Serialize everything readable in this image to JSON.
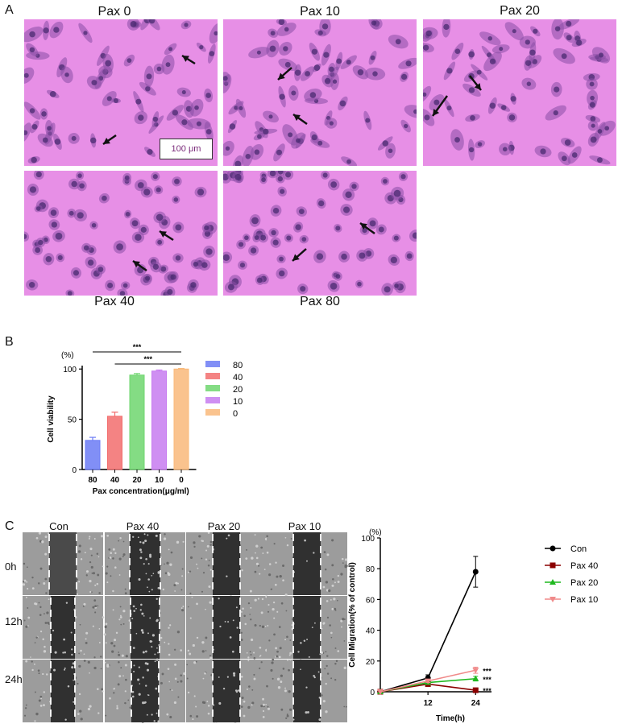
{
  "panel_a": {
    "letter": "A",
    "labels": [
      "Pax 0",
      "Pax 10",
      "Pax 20",
      "Pax 40",
      "Pax 80"
    ],
    "scale_bar": "100 μm",
    "colors": {
      "bg": "#e78fe6",
      "cell": "#8a4fa6",
      "nucleus": "#4a2a70",
      "arrow": "#111111"
    }
  },
  "panel_b": {
    "letter": "B",
    "unit": "(%)",
    "sig1": "***",
    "sig2": "***",
    "legend": [
      "80",
      "40",
      "20",
      "10",
      "0"
    ]
  },
  "panel_c": {
    "letter": "C",
    "columns": [
      "Con",
      "Pax 40",
      "Pax 20",
      "Pax 10"
    ],
    "rows": [
      "0h",
      "12h",
      "24h"
    ],
    "unit": "(%)",
    "legend": [
      "Con",
      "Pax 40",
      "Pax 20",
      "Pax 10"
    ],
    "stars": [
      "***",
      "***",
      "***"
    ]
  },
  "chart_data": [
    {
      "type": "bar",
      "categories": [
        "80",
        "40",
        "20",
        "10",
        "0"
      ],
      "values": [
        29,
        53,
        94,
        98,
        100
      ],
      "errors": [
        3,
        4,
        1.5,
        1,
        0.5
      ],
      "colors": [
        "#6b7bf5",
        "#f26d6d",
        "#6fd66f",
        "#c77bf0",
        "#f9b97a"
      ],
      "xlabel": "Pax concentration(μg/ml)",
      "ylabel": "Cell viability",
      "yticks": [
        "0",
        "50",
        "100"
      ],
      "ylim": [
        0,
        105
      ],
      "legend_position": "right"
    },
    {
      "type": "line",
      "x": [
        0,
        12,
        24
      ],
      "xticks": [
        "12",
        "24"
      ],
      "yticks": [
        "0",
        "20",
        "40",
        "60",
        "80",
        "100"
      ],
      "ylim": [
        0,
        100
      ],
      "xlabel": "Time(h)",
      "ylabel": "Cell Migration(% of control)",
      "series": [
        {
          "name": "Con",
          "values": [
            0,
            9,
            78
          ],
          "errors": [
            0,
            2,
            10
          ],
          "color": "#000000",
          "marker": "circle"
        },
        {
          "name": "Pax 40",
          "values": [
            0,
            5,
            1
          ],
          "errors": [
            0,
            1,
            0.5
          ],
          "color": "#8b0000",
          "marker": "square"
        },
        {
          "name": "Pax 20",
          "values": [
            0,
            6,
            8.5
          ],
          "errors": [
            0,
            1,
            1.5
          ],
          "color": "#1fb81f",
          "marker": "triangle-up"
        },
        {
          "name": "Pax 10",
          "values": [
            0,
            7,
            14
          ],
          "errors": [
            0,
            1,
            2
          ],
          "color": "#f08a8a",
          "marker": "triangle-down"
        }
      ],
      "legend_position": "right"
    }
  ]
}
